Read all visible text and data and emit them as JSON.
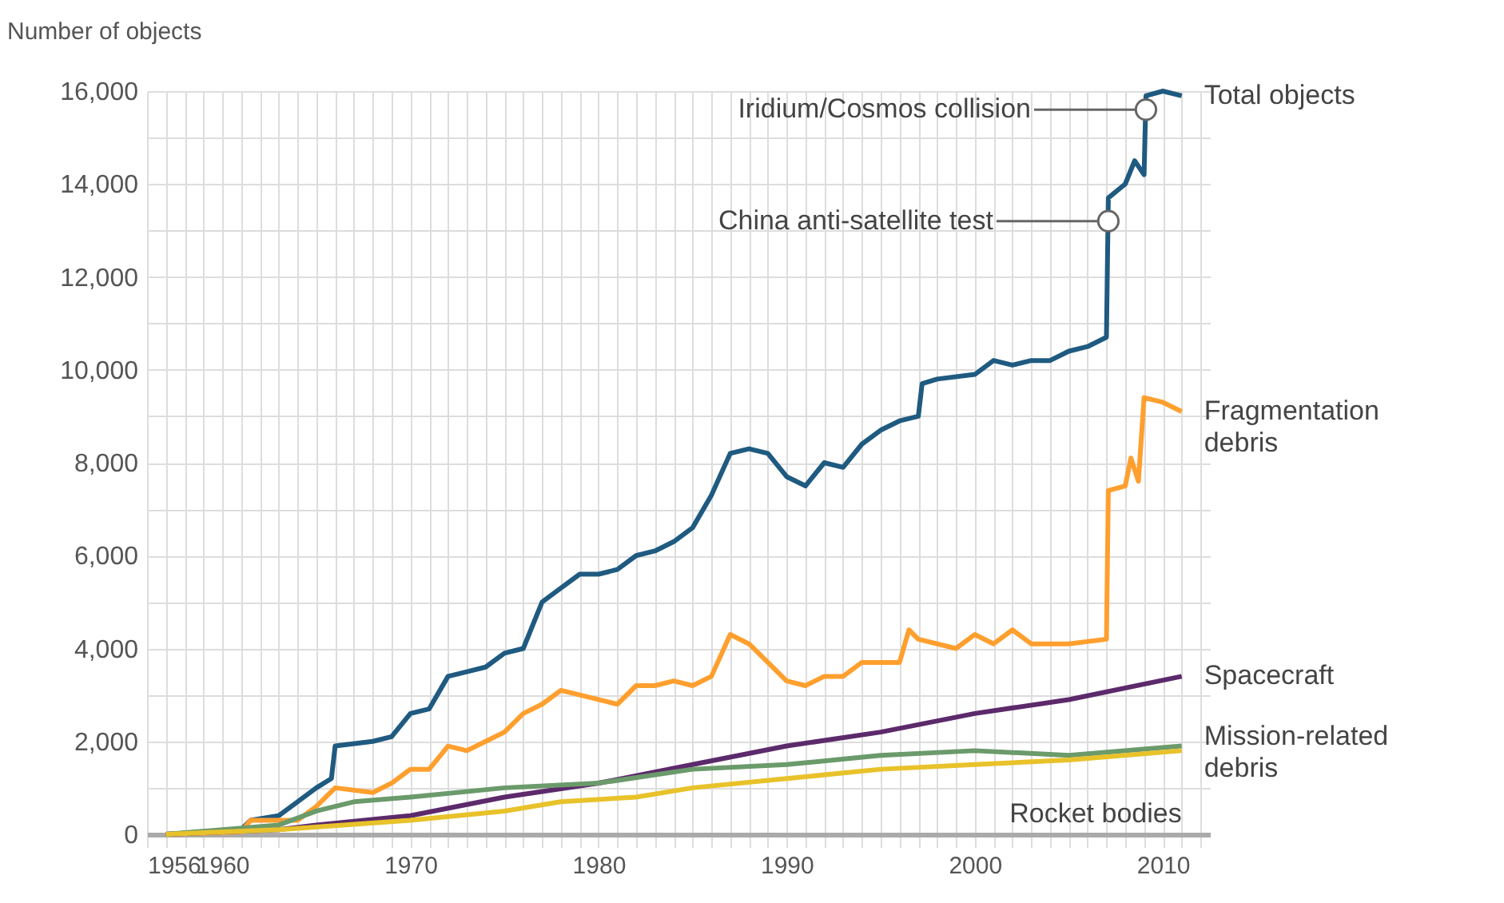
{
  "chart_data": {
    "type": "line",
    "ylabel": "Number of objects",
    "xlim": [
      1956,
      2012.5
    ],
    "xticks": [
      1956,
      {
        "value": 1957,
        "label": null
      },
      {
        "value": 1958,
        "label": null
      },
      {
        "value": 1959,
        "label": null
      },
      1960,
      {
        "value": 1961,
        "label": null
      },
      {
        "value": 1962,
        "label": null
      },
      {
        "value": 1963,
        "label": null
      },
      {
        "value": 1964,
        "label": null
      },
      {
        "value": 1965,
        "label": null
      },
      {
        "value": 1966,
        "label": null
      },
      {
        "value": 1967,
        "label": null
      },
      {
        "value": 1968,
        "label": null
      },
      {
        "value": 1969,
        "label": null
      },
      1970,
      {
        "value": 1971,
        "label": null
      },
      {
        "value": 1972,
        "label": null
      },
      {
        "value": 1973,
        "label": null
      },
      {
        "value": 1974,
        "label": null
      },
      {
        "value": 1975,
        "label": null
      },
      {
        "value": 1976,
        "label": null
      },
      {
        "value": 1977,
        "label": null
      },
      {
        "value": 1978,
        "label": null
      },
      {
        "value": 1979,
        "label": null
      },
      1980,
      {
        "value": 1981,
        "label": null
      },
      {
        "value": 1982,
        "label": null
      },
      {
        "value": 1983,
        "label": null
      },
      {
        "value": 1984,
        "label": null
      },
      {
        "value": 1985,
        "label": null
      },
      {
        "value": 1986,
        "label": null
      },
      {
        "value": 1987,
        "label": null
      },
      {
        "value": 1988,
        "label": null
      },
      {
        "value": 1989,
        "label": null
      },
      1990,
      {
        "value": 1991,
        "label": null
      },
      {
        "value": 1992,
        "label": null
      },
      {
        "value": 1993,
        "label": null
      },
      {
        "value": 1994,
        "label": null
      },
      {
        "value": 1995,
        "label": null
      },
      {
        "value": 1996,
        "label": null
      },
      {
        "value": 1997,
        "label": null
      },
      {
        "value": 1998,
        "label": null
      },
      {
        "value": 1999,
        "label": null
      },
      2000,
      {
        "value": 2001,
        "label": null
      },
      {
        "value": 2002,
        "label": null
      },
      {
        "value": 2003,
        "label": null
      },
      {
        "value": 2004,
        "label": null
      },
      {
        "value": 2005,
        "label": null
      },
      {
        "value": 2006,
        "label": null
      },
      {
        "value": 2007,
        "label": null
      },
      {
        "value": 2008,
        "label": null
      },
      {
        "value": 2009,
        "label": null
      },
      2010,
      {
        "value": 2011,
        "label": null
      },
      {
        "value": 2012,
        "label": null
      }
    ],
    "ylim": [
      0,
      16000
    ],
    "yticks": [
      0,
      {
        "value": 1000,
        "label": null
      },
      {
        "value": 2000,
        "label": "2,000"
      },
      {
        "value": 3000,
        "label": null
      },
      {
        "value": 4000,
        "label": "4,000"
      },
      {
        "value": 5000,
        "label": null
      },
      {
        "value": 6000,
        "label": "6,000"
      },
      {
        "value": 7000,
        "label": null
      },
      {
        "value": 8000,
        "label": "8,000"
      },
      {
        "value": 9000,
        "label": null
      },
      {
        "value": 10000,
        "label": "10,000"
      },
      {
        "value": 11000,
        "label": null
      },
      {
        "value": 12000,
        "label": "12,000"
      },
      {
        "value": 13000,
        "label": null
      },
      {
        "value": 14000,
        "label": "14,000"
      },
      {
        "value": 15000,
        "label": null
      },
      {
        "value": 16000,
        "label": "16,000"
      }
    ],
    "grid": true,
    "legend": false,
    "line_style": "solid",
    "marker": "none",
    "series": [
      {
        "name": "Total objects",
        "color": "#1f5a80",
        "x": [
          1957,
          1961,
          1961.5,
          1963,
          1964,
          1965,
          1965.8,
          1966,
          1968,
          1969,
          1970,
          1971,
          1972,
          1973,
          1974,
          1975,
          1976,
          1977,
          1978,
          1979,
          1980,
          1981,
          1982,
          1983,
          1984,
          1985,
          1986,
          1987,
          1988,
          1989,
          1990,
          1991,
          1992,
          1993,
          1994,
          1995,
          1996,
          1997,
          1997.2,
          1998,
          2000,
          2001,
          2002,
          2003,
          2004,
          2005,
          2006,
          2007,
          2007.1,
          2008,
          2008.5,
          2009,
          2009.1,
          2010,
          2011
        ],
        "values": [
          0,
          100,
          300,
          400,
          700,
          1000,
          1200,
          1900,
          2000,
          2100,
          2600,
          2700,
          3400,
          3500,
          3600,
          3900,
          4000,
          5000,
          5300,
          5600,
          5600,
          5700,
          6000,
          6100,
          6300,
          6600,
          7300,
          8200,
          8300,
          8200,
          7700,
          7500,
          8000,
          7900,
          8400,
          8700,
          8900,
          9000,
          9700,
          9800,
          9900,
          10200,
          10100,
          10200,
          10200,
          10400,
          10500,
          10700,
          13700,
          14000,
          14500,
          14200,
          15900,
          16000,
          15900
        ]
      },
      {
        "name": "Fragmentation debris",
        "color": "#ff9f2e",
        "x": [
          1957,
          1961,
          1961.5,
          1964,
          1965,
          1966,
          1968,
          1969,
          1970,
          1971,
          1972,
          1973,
          1974,
          1975,
          1976,
          1977,
          1978,
          1979,
          1980,
          1981,
          1982,
          1983,
          1984,
          1985,
          1986,
          1987,
          1988,
          1989,
          1990,
          1991,
          1992,
          1993,
          1994,
          1996,
          1996.5,
          1997,
          1999,
          2000,
          2001,
          2002,
          2003,
          2005,
          2007,
          2007.1,
          2008,
          2008.3,
          2008.7,
          2009,
          2010,
          2011
        ],
        "values": [
          0,
          50,
          300,
          300,
          600,
          1000,
          900,
          1100,
          1400,
          1400,
          1900,
          1800,
          2000,
          2200,
          2600,
          2800,
          3100,
          3000,
          2900,
          2800,
          3200,
          3200,
          3300,
          3200,
          3400,
          4300,
          4100,
          3700,
          3300,
          3200,
          3400,
          3400,
          3700,
          3700,
          4400,
          4200,
          4000,
          4300,
          4100,
          4400,
          4100,
          4100,
          4200,
          7400,
          7500,
          8100,
          7600,
          9400,
          9300,
          9100
        ]
      },
      {
        "name": "Spacecraft",
        "color": "#5c2a6b",
        "x": [
          1957,
          1963,
          1965,
          1970,
          1975,
          1980,
          1985,
          1990,
          1995,
          2000,
          2005,
          2011
        ],
        "values": [
          0,
          100,
          200,
          400,
          800,
          1100,
          1500,
          1900,
          2200,
          2600,
          2900,
          3400
        ]
      },
      {
        "name": "Mission-related debris",
        "color": "#6b9a6b",
        "x": [
          1957,
          1963,
          1965,
          1967,
          1970,
          1975,
          1980,
          1985,
          1990,
          1995,
          2000,
          2005,
          2011
        ],
        "values": [
          0,
          200,
          500,
          700,
          800,
          1000,
          1100,
          1400,
          1500,
          1700,
          1800,
          1700,
          1900
        ]
      },
      {
        "name": "Rocket bodies",
        "color": "#e8c22a",
        "x": [
          1957,
          1963,
          1970,
          1975,
          1978,
          1982,
          1985,
          1990,
          1995,
          2000,
          2005,
          2011
        ],
        "values": [
          0,
          100,
          300,
          500,
          700,
          800,
          1000,
          1200,
          1400,
          1500,
          1600,
          1800
        ]
      }
    ],
    "annotations": [
      {
        "text": "Iridium/Cosmos collision",
        "x": 2009.1,
        "y": 15600
      },
      {
        "text": "China anti-satellite test",
        "x": 2007.1,
        "y": 13200
      }
    ]
  }
}
